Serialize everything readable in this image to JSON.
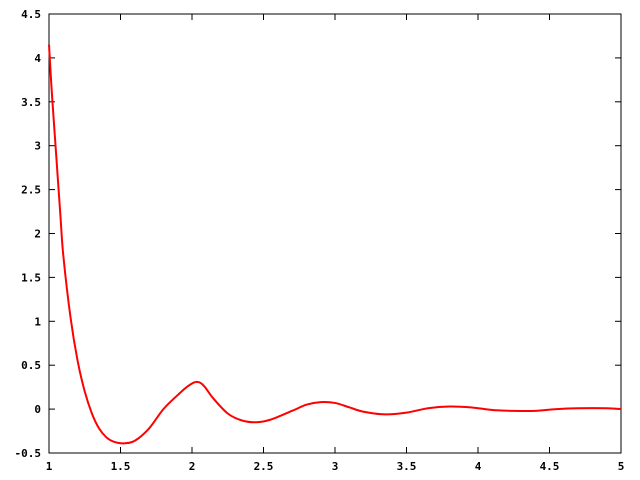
{
  "chart_data": {
    "type": "line",
    "title": "",
    "xlabel": "",
    "ylabel": "",
    "xlim": [
      1,
      5
    ],
    "ylim": [
      -0.5,
      4.5
    ],
    "grid": false,
    "x_ticks": [
      "1",
      "1.5",
      "2",
      "2.5",
      "3",
      "3.5",
      "4",
      "4.5",
      "5"
    ],
    "y_ticks": [
      "-0.5",
      "0",
      "0.5",
      "1",
      "1.5",
      "2",
      "2.5",
      "3",
      "3.5",
      "4",
      "4.5"
    ],
    "series": [
      {
        "color": "#ff0000",
        "x": [
          1.0,
          1.02,
          1.05,
          1.08,
          1.1,
          1.15,
          1.2,
          1.25,
          1.3,
          1.35,
          1.4,
          1.45,
          1.52,
          1.6,
          1.7,
          1.8,
          1.9,
          1.97,
          2.03,
          2.08,
          2.15,
          2.25,
          2.35,
          2.45,
          2.55,
          2.7,
          2.8,
          2.9,
          3.0,
          3.1,
          3.2,
          3.35,
          3.5,
          3.65,
          3.8,
          3.95,
          4.1,
          4.25,
          4.4,
          4.55,
          4.7,
          4.9,
          5.0
        ],
        "y": [
          4.15,
          3.6,
          2.9,
          2.2,
          1.75,
          1.05,
          0.55,
          0.2,
          -0.05,
          -0.22,
          -0.32,
          -0.37,
          -0.39,
          -0.36,
          -0.22,
          0.0,
          0.16,
          0.26,
          0.31,
          0.27,
          0.12,
          -0.05,
          -0.13,
          -0.15,
          -0.12,
          -0.02,
          0.05,
          0.08,
          0.07,
          0.02,
          -0.03,
          -0.06,
          -0.04,
          0.01,
          0.03,
          0.02,
          -0.01,
          -0.02,
          -0.02,
          0.0,
          0.01,
          0.01,
          0.0
        ]
      }
    ]
  }
}
